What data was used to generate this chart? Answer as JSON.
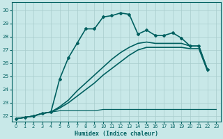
{
  "bg_color": "#c8e8e8",
  "grid_color": "#a8cccc",
  "line_color": "#006060",
  "xlabel": "Humidex (Indice chaleur)",
  "xlim": [
    -0.5,
    23.5
  ],
  "ylim": [
    21.6,
    30.6
  ],
  "yticks": [
    22,
    23,
    24,
    25,
    26,
    27,
    28,
    29,
    30
  ],
  "xticks": [
    0,
    1,
    2,
    3,
    4,
    5,
    6,
    7,
    8,
    9,
    10,
    11,
    12,
    13,
    14,
    15,
    16,
    17,
    18,
    19,
    20,
    21,
    22,
    23
  ],
  "lines": [
    {
      "x": [
        0,
        1,
        2,
        3,
        4,
        5,
        6,
        7,
        8,
        9,
        10,
        11,
        12,
        13,
        14,
        15,
        16,
        17,
        18,
        19,
        20,
        21,
        22
      ],
      "y": [
        21.8,
        21.9,
        22.0,
        22.2,
        22.3,
        24.8,
        26.4,
        27.5,
        28.6,
        28.6,
        29.5,
        29.6,
        29.8,
        29.7,
        28.2,
        28.5,
        28.1,
        28.1,
        28.3,
        27.9,
        27.3,
        27.3,
        25.5
      ],
      "marker": true,
      "lw": 1.2
    },
    {
      "x": [
        0,
        1,
        2,
        3,
        4,
        5,
        6,
        7,
        8,
        9,
        10,
        11,
        12,
        13,
        14,
        15,
        16,
        17,
        18,
        19,
        20,
        21,
        22
      ],
      "y": [
        21.8,
        21.9,
        22.0,
        22.2,
        22.3,
        22.7,
        23.2,
        23.9,
        24.5,
        25.1,
        25.7,
        26.3,
        26.8,
        27.2,
        27.5,
        27.6,
        27.5,
        27.5,
        27.5,
        27.5,
        27.3,
        27.3,
        25.5
      ],
      "marker": false,
      "lw": 1.2
    },
    {
      "x": [
        0,
        1,
        2,
        3,
        4,
        5,
        6,
        7,
        8,
        9,
        10,
        11,
        12,
        13,
        14,
        15,
        16,
        17,
        18,
        19,
        20,
        21,
        22,
        23
      ],
      "y": [
        21.8,
        21.9,
        22.0,
        22.2,
        22.3,
        22.4,
        22.4,
        22.4,
        22.4,
        22.4,
        22.5,
        22.5,
        22.5,
        22.5,
        22.5,
        22.5,
        22.5,
        22.5,
        22.5,
        22.5,
        22.5,
        22.5,
        22.5,
        22.5
      ],
      "marker": false,
      "lw": 0.9
    },
    {
      "x": [
        0,
        1,
        2,
        3,
        4,
        5,
        6,
        7,
        8,
        9,
        10,
        11,
        12,
        13,
        14,
        15,
        16,
        17,
        18,
        19,
        20,
        21,
        22
      ],
      "y": [
        21.8,
        21.9,
        22.0,
        22.2,
        22.3,
        22.6,
        23.0,
        23.5,
        24.0,
        24.5,
        25.1,
        25.6,
        26.1,
        26.6,
        27.0,
        27.2,
        27.2,
        27.2,
        27.2,
        27.2,
        27.1,
        27.1,
        25.4
      ],
      "marker": false,
      "lw": 1.2
    }
  ]
}
